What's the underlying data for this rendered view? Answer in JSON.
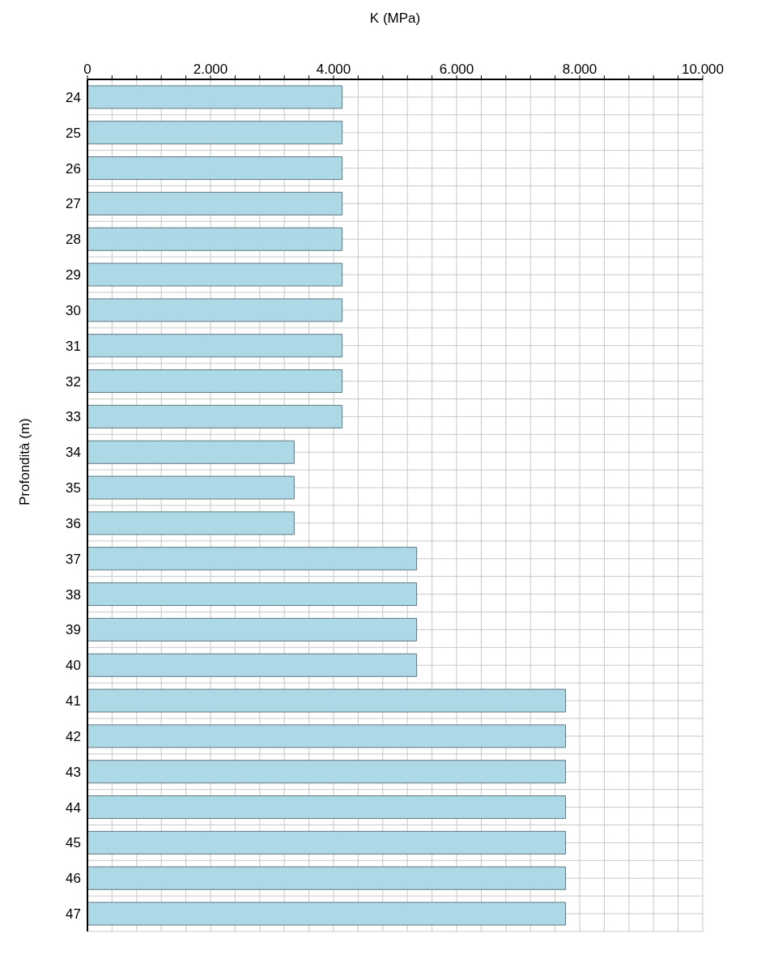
{
  "chart_data": {
    "type": "bar",
    "orientation": "horizontal",
    "xlabel": "K (MPa)",
    "ylabel": "Profondità (m)",
    "categories": [
      "24",
      "25",
      "26",
      "27",
      "28",
      "29",
      "30",
      "31",
      "32",
      "33",
      "34",
      "35",
      "36",
      "37",
      "38",
      "39",
      "40",
      "41",
      "42",
      "43",
      "44",
      "45",
      "46",
      "47"
    ],
    "values": [
      4140,
      4140,
      4140,
      4140,
      4140,
      4140,
      4140,
      4140,
      4140,
      4140,
      3360,
      3360,
      3360,
      5350,
      5350,
      5350,
      5350,
      7770,
      7770,
      7770,
      7770,
      7770,
      7770,
      7770
    ],
    "color": "#add8e6",
    "xlim": [
      0,
      10000
    ],
    "xticks": [
      {
        "value": 0,
        "label": "0"
      },
      {
        "value": 400,
        "label": null
      },
      {
        "value": 800,
        "label": null
      },
      {
        "value": 1200,
        "label": null
      },
      {
        "value": 1600,
        "label": null
      },
      {
        "value": 2000,
        "label": "2.000"
      },
      {
        "value": 2400,
        "label": null
      },
      {
        "value": 2800,
        "label": null
      },
      {
        "value": 3200,
        "label": null
      },
      {
        "value": 3600,
        "label": null
      },
      {
        "value": 4000,
        "label": "4.000"
      },
      {
        "value": 4400,
        "label": null
      },
      {
        "value": 4800,
        "label": null
      },
      {
        "value": 5200,
        "label": null
      },
      {
        "value": 5600,
        "label": null
      },
      {
        "value": 6000,
        "label": "6.000"
      },
      {
        "value": 6400,
        "label": null
      },
      {
        "value": 6800,
        "label": null
      },
      {
        "value": 7200,
        "label": null
      },
      {
        "value": 7600,
        "label": null
      },
      {
        "value": 8000,
        "label": "8.000"
      },
      {
        "value": 8400,
        "label": null
      },
      {
        "value": 8800,
        "label": null
      },
      {
        "value": 9200,
        "label": null
      },
      {
        "value": 9600,
        "label": null
      },
      {
        "value": 10000,
        "label": "10.000"
      }
    ],
    "grid": true
  }
}
